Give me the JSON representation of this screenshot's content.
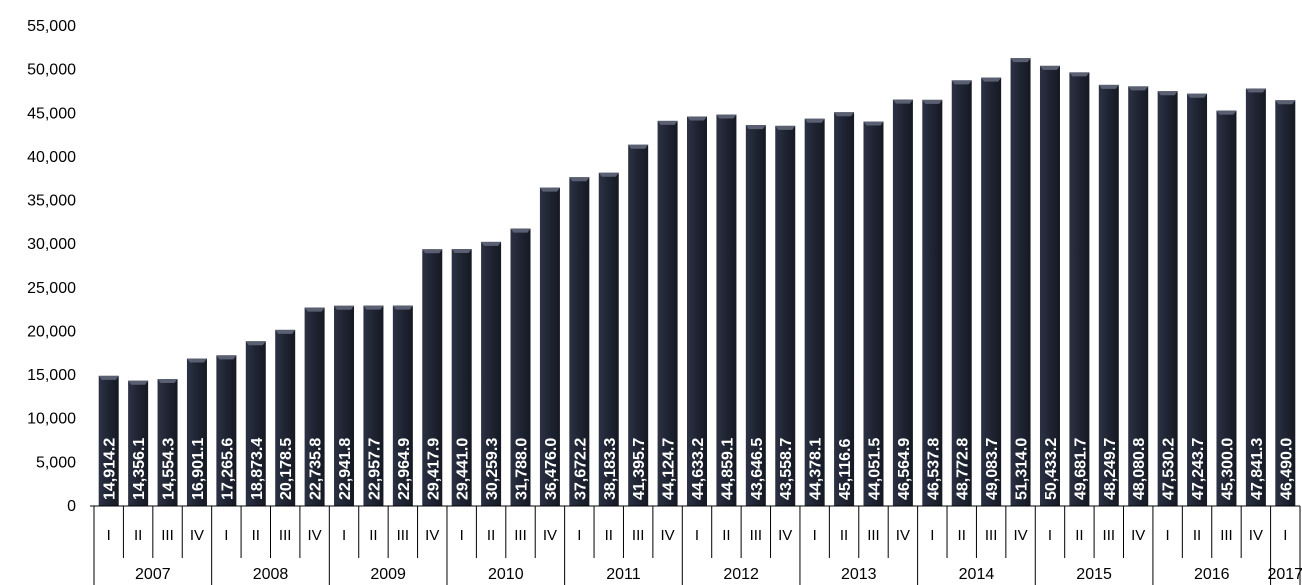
{
  "chart_data": {
    "type": "bar",
    "title": "",
    "xlabel": "",
    "ylabel": "",
    "ylim": [
      0,
      55000
    ],
    "y_ticks": [
      "0",
      "5,000",
      "10,000",
      "15,000",
      "20,000",
      "25,000",
      "30,000",
      "35,000",
      "40,000",
      "45,000",
      "50,000",
      "55,000"
    ],
    "grid": false,
    "legend": "none",
    "bar_color": "#1f2433",
    "label_color": "#ffffff",
    "years": [
      {
        "year": "2007",
        "quarters": [
          "I",
          "II",
          "III",
          "IV"
        ]
      },
      {
        "year": "2008",
        "quarters": [
          "I",
          "II",
          "III",
          "IV"
        ]
      },
      {
        "year": "2009",
        "quarters": [
          "I",
          "II",
          "III",
          "IV"
        ]
      },
      {
        "year": "2010",
        "quarters": [
          "I",
          "II",
          "III",
          "IV"
        ]
      },
      {
        "year": "2011",
        "quarters": [
          "I",
          "II",
          "III",
          "IV"
        ]
      },
      {
        "year": "2012",
        "quarters": [
          "I",
          "II",
          "III",
          "IV"
        ]
      },
      {
        "year": "2013",
        "quarters": [
          "I",
          "II",
          "III",
          "IV"
        ]
      },
      {
        "year": "2014",
        "quarters": [
          "I",
          "II",
          "III",
          "IV"
        ]
      },
      {
        "year": "2015",
        "quarters": [
          "I",
          "II",
          "III",
          "IV"
        ]
      },
      {
        "year": "2016",
        "quarters": [
          "I",
          "II",
          "III",
          "IV"
        ]
      },
      {
        "year": "2017",
        "quarters": [
          "I"
        ]
      }
    ],
    "values": [
      14914.2,
      14356.1,
      14554.3,
      16901.1,
      17265.6,
      18873.4,
      20178.5,
      22735.8,
      22941.8,
      22957.7,
      22964.9,
      29417.9,
      29441.0,
      30259.3,
      31788.0,
      36476.0,
      37672.2,
      38183.3,
      41395.7,
      44124.7,
      44633.2,
      44859.1,
      43646.5,
      43558.7,
      44378.1,
      45116.6,
      44051.5,
      46564.9,
      46537.8,
      48772.8,
      49083.7,
      51314.0,
      50433.2,
      49681.7,
      48249.7,
      48080.8,
      47530.2,
      47243.7,
      45300.0,
      47841.3,
      46490.0
    ],
    "value_labels": [
      "14,914.2",
      "14,356.1",
      "14,554.3",
      "16,901.1",
      "17,265.6",
      "18,873.4",
      "20,178.5",
      "22,735.8",
      "22,941.8",
      "22,957.7",
      "22,964.9",
      "29,417.9",
      "29,441.0",
      "30,259.3",
      "31,788.0",
      "36,476.0",
      "37,672.2",
      "38,183.3",
      "41,395.7",
      "44,124.7",
      "44,633.2",
      "44,859.1",
      "43,646.5",
      "43,558.7",
      "44,378.1",
      "45,116.6",
      "44,051.5",
      "46,564.9",
      "46,537.8",
      "48,772.8",
      "49,083.7",
      "51,314.0",
      "50,433.2",
      "49,681.7",
      "48,249.7",
      "48,080.8",
      "47,530.2",
      "47,243.7",
      "45,300.0",
      "47,841.3",
      "46,490.0"
    ]
  }
}
